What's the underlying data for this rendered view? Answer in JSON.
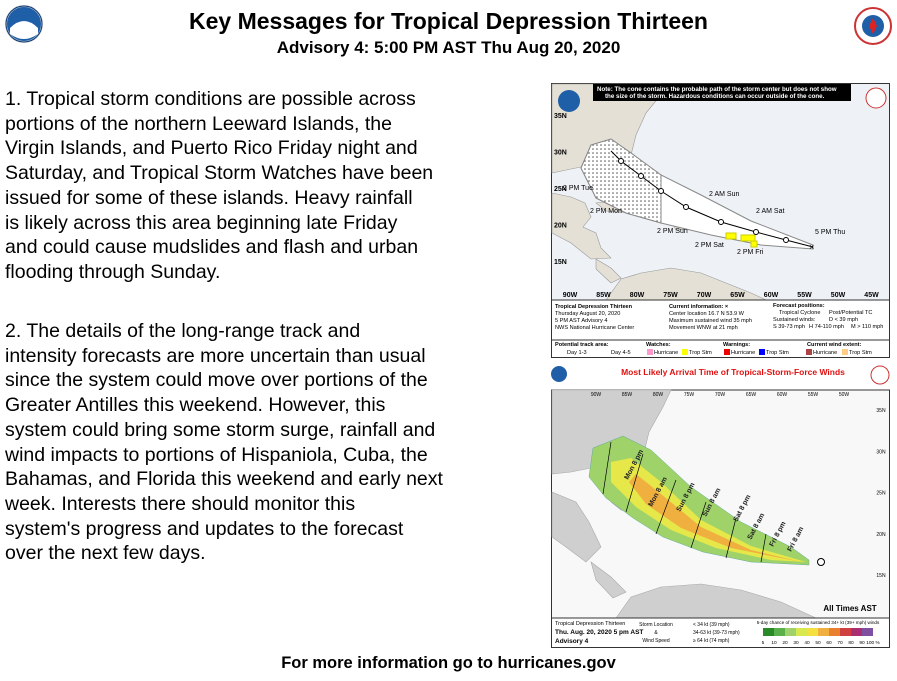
{
  "header": {
    "title": "Key Messages for Tropical Depression Thirteen",
    "subtitle": "Advisory 4:  5:00 PM AST Thu Aug 20, 2020"
  },
  "messages": [
    {
      "lines": [
        "1. Tropical storm conditions are possible across",
        "portions of the northern Leeward Islands, the",
        "Virgin Islands, and Puerto Rico Friday night and",
        "Saturday, and Tropical Storm Watches have been",
        "issued for some of these islands. Heavy rainfall",
        "is likely across this area beginning late Friday",
        "and could cause mudslides and flash and urban",
        "flooding through Sunday."
      ]
    },
    {
      "lines": [
        "2. The details of the long-range track and",
        "intensity forecasts are more uncertain than usual",
        "since the system could move over portions of the",
        "Greater Antilles this weekend. However, this",
        "system could bring some storm surge, rainfall and",
        "wind impacts to portions of Hispaniola, Cuba, the",
        "Bahamas, and Florida this weekend and early next",
        "week. Interests there should monitor this",
        "system's progress and updates to the forecast",
        "over the next few days."
      ]
    }
  ],
  "footer": "For more information go to hurricanes.gov",
  "cone_map": {
    "note": [
      "Note: The cone contains the probable path of the storm center but does not show",
      "the size of the storm. Hazardous conditions can occur outside of the cone."
    ],
    "lat_labels": [
      "35N",
      "30N",
      "25N",
      "20N",
      "15N"
    ],
    "lon_labels": [
      "90W",
      "85W",
      "80W",
      "75W",
      "70W",
      "65W",
      "60W",
      "55W",
      "50W",
      "45W"
    ],
    "track_labels": [
      "5 PM Thu",
      "2 AM Sat",
      "2 PM Fri",
      "2 PM Sat",
      "2 AM Sun",
      "2 PM Sun",
      "2 PM Mon",
      "2 PM Tue"
    ],
    "storm": [
      "Tropical Depression Thirteen",
      "Thursday August 20, 2020",
      "5 PM AST Advisory 4",
      "NWS National Hurricane Center"
    ],
    "current": [
      "Current information: ×",
      "Center location 16.7 N 53.9 W",
      "Maximum sustained wind 35 mph",
      "Movement WNW at 21 mph"
    ],
    "forecast": [
      "Forecast positions:",
      "Tropical Cyclone",
      "Post/Potential TC",
      "Sustained winds:",
      "D < 39 mph",
      "S 39-73 mph",
      "H 74-110 mph",
      "M > 110 mph"
    ],
    "track_area": [
      "Potential track area:",
      "Day 1-3",
      "Day 4-5"
    ],
    "watches": [
      "Watches:",
      "Hurricane",
      "Trop Stm"
    ],
    "warnings": [
      "Warnings:",
      "Hurricane",
      "Trop Stm"
    ],
    "wind_extent": [
      "Current wind extent:",
      "Hurricane",
      "Trop Stm"
    ]
  },
  "wind_map": {
    "title": "Most Likely Arrival Time of Tropical-Storm-Force Winds",
    "lat_labels": [
      "35N",
      "30N",
      "25N",
      "20N",
      "15N"
    ],
    "lon_labels": [
      "90W",
      "85W",
      "80W",
      "75W",
      "70W",
      "65W",
      "60W",
      "55W",
      "50W"
    ],
    "swath_labels": [
      "Mon 8 pm",
      "Mon 8 am",
      "Sun 8 pm",
      "Sun 8 am",
      "Sat 8 pm",
      "Sat 8 am",
      "Fri 8 pm",
      "Fri 8 am"
    ],
    "corner": "All Times AST",
    "storm": [
      "Tropical Depression Thirteen",
      "Thu. Aug. 20, 2020  5 pm AST",
      "Advisory 4"
    ],
    "symbols": [
      "Storm Location",
      "&",
      "Wind Speed"
    ],
    "speeds": [
      "< 34 kt (39 mph)",
      "34-63 kt (39-73 mph)",
      "≥ 64 kt (74 mph)"
    ],
    "scale_title": "5-day chance of receiving sustained 34+ kt (39+ mph) winds",
    "scale": [
      "5",
      "10",
      "20",
      "30",
      "40",
      "50",
      "60",
      "70",
      "80",
      "90",
      "100 %"
    ]
  }
}
